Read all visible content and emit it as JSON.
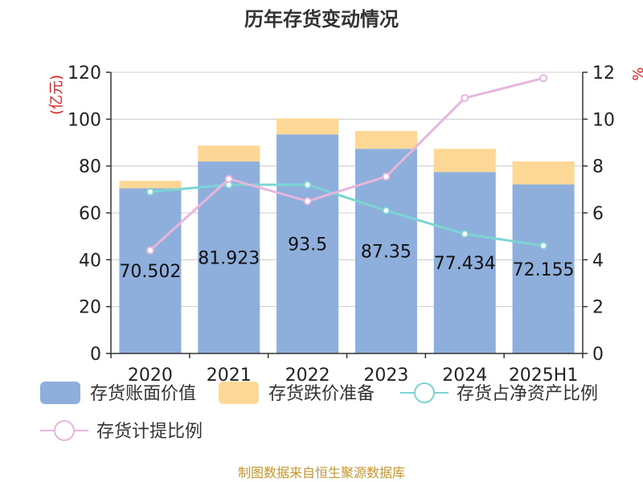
{
  "chart_data": {
    "type": "bar",
    "title": "历年存货变动情况",
    "categories": [
      "2020",
      "2021",
      "2022",
      "2023",
      "2024",
      "2025H1"
    ],
    "y_left": {
      "unit": "(亿元)",
      "range": [
        0,
        120
      ],
      "ticks": [
        "0",
        "20",
        "40",
        "60",
        "80",
        "100",
        "120"
      ]
    },
    "y_right": {
      "unit": "%",
      "range": [
        0,
        12
      ],
      "ticks": [
        "0",
        "2",
        "4",
        "6",
        "8",
        "10",
        "12"
      ]
    },
    "grid": true,
    "legend_position": "bottom",
    "series": [
      {
        "name": "存货账面价值",
        "type": "bar",
        "stack": "inventory",
        "axis": "left",
        "color": "#8eaedc",
        "values": [
          70.502,
          81.923,
          93.5,
          87.35,
          77.434,
          72.155
        ],
        "labels": [
          "70.502",
          "81.923",
          "93.5",
          "87.35",
          "77.434",
          "72.155"
        ]
      },
      {
        "name": "存货跌价准备",
        "type": "bar",
        "stack": "inventory",
        "axis": "left",
        "color": "#fdd795",
        "values": [
          3.2,
          6.8,
          6.8,
          7.6,
          9.9,
          9.8
        ]
      },
      {
        "name": "存货占净资产比例",
        "type": "line",
        "axis": "right",
        "color": "#7dd5d3",
        "values": [
          6.9,
          7.2,
          7.2,
          6.1,
          5.1,
          4.6
        ]
      },
      {
        "name": "存货计提比例",
        "type": "line",
        "axis": "right",
        "color": "#e7b6dc",
        "values": [
          4.4,
          7.45,
          6.5,
          7.55,
          10.9,
          11.75
        ]
      }
    ]
  },
  "source": "制图数据来自恒生聚源数据库"
}
